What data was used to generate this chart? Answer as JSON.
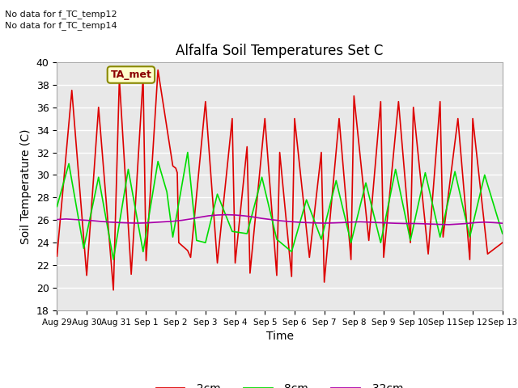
{
  "title": "Alfalfa Soil Temperatures Set C",
  "xlabel": "Time",
  "ylabel": "Soil Temperature (C)",
  "ylim": [
    18,
    40
  ],
  "bg_color": "#e8e8e8",
  "grid_color": "#ffffff",
  "annotations": [
    "No data for f_TC_temp12",
    "No data for f_TC_temp14"
  ],
  "legend_box_label": "TA_met",
  "legend_box_color": "#ffffcc",
  "legend_box_border": "#888800",
  "xtick_labels": [
    "Aug 29",
    "Aug 30",
    "Aug 31",
    "Sep 1",
    "Sep 2",
    "Sep 3",
    "Sep 4",
    "Sep 5",
    "Sep 6",
    "Sep 7",
    "Sep 8",
    "Sep 9",
    "Sep 10",
    "Sep 11",
    "Sep 12",
    "Sep 13"
  ],
  "line_2cm_color": "#dd0000",
  "line_8cm_color": "#00dd00",
  "line_32cm_color": "#aa00aa",
  "line_width": 1.2,
  "series_2cm_x": [
    0.0,
    0.5,
    1.0,
    1.4,
    1.9,
    2.1,
    2.5,
    2.9,
    3.0,
    3.4,
    3.9,
    4.0,
    4.05,
    4.1,
    4.4,
    4.5,
    5.0,
    5.4,
    5.9,
    6.0,
    6.4,
    6.5,
    7.0,
    7.4,
    7.5,
    7.9,
    8.0,
    8.5,
    8.9,
    9.0,
    9.5,
    9.9,
    10.0,
    10.5,
    10.9,
    11.0,
    11.5,
    11.9,
    12.0,
    12.5,
    12.9,
    13.0,
    13.5,
    13.9,
    14.0,
    14.5,
    15.0
  ],
  "series_2cm_y": [
    22.8,
    37.5,
    21.1,
    36.0,
    19.8,
    38.5,
    21.2,
    38.7,
    22.4,
    39.3,
    30.8,
    30.6,
    30.2,
    24.0,
    23.3,
    22.7,
    36.5,
    22.2,
    35.0,
    22.2,
    32.5,
    21.3,
    35.0,
    21.1,
    32.0,
    21.0,
    35.0,
    22.7,
    32.0,
    20.5,
    35.0,
    22.5,
    37.0,
    24.2,
    36.5,
    22.7,
    36.5,
    24.0,
    36.0,
    23.0,
    36.5,
    24.5,
    35.0,
    22.5,
    35.0,
    23.0,
    24.0
  ],
  "series_8cm_x": [
    0.0,
    0.4,
    0.9,
    1.4,
    1.9,
    2.4,
    2.9,
    3.4,
    3.7,
    3.9,
    4.4,
    4.7,
    5.0,
    5.4,
    5.9,
    6.4,
    6.9,
    7.4,
    7.9,
    8.4,
    8.9,
    9.4,
    9.9,
    10.4,
    10.9,
    11.4,
    11.9,
    12.4,
    12.9,
    13.4,
    13.9,
    14.4,
    15.0
  ],
  "series_8cm_y": [
    27.2,
    31.0,
    23.5,
    29.8,
    22.5,
    30.5,
    23.2,
    31.2,
    28.5,
    24.5,
    32.0,
    24.2,
    24.0,
    28.3,
    25.0,
    24.8,
    29.8,
    24.3,
    23.2,
    27.8,
    24.3,
    29.5,
    24.0,
    29.3,
    24.0,
    30.5,
    24.2,
    30.2,
    24.5,
    30.3,
    24.5,
    30.0,
    24.8
  ],
  "series_32cm_x": [
    0.0,
    0.3,
    0.6,
    0.9,
    1.2,
    1.5,
    1.8,
    2.1,
    2.4,
    2.7,
    3.0,
    3.3,
    3.6,
    3.9,
    4.2,
    4.5,
    4.8,
    5.1,
    5.4,
    5.7,
    6.0,
    6.3,
    6.6,
    6.9,
    7.2,
    7.5,
    7.8,
    8.1,
    8.4,
    8.7,
    9.0,
    9.3,
    9.6,
    9.9,
    10.2,
    10.5,
    10.8,
    11.1,
    11.4,
    11.7,
    12.0,
    12.3,
    12.6,
    12.9,
    13.2,
    13.5,
    13.8,
    14.1,
    14.4,
    14.7,
    15.0
  ],
  "series_32cm_y": [
    26.05,
    26.1,
    26.05,
    26.0,
    25.95,
    25.88,
    25.82,
    25.78,
    25.75,
    25.73,
    25.75,
    25.8,
    25.85,
    25.9,
    25.98,
    26.1,
    26.25,
    26.38,
    26.45,
    26.48,
    26.45,
    26.38,
    26.28,
    26.15,
    26.05,
    25.95,
    25.88,
    25.82,
    25.78,
    25.75,
    25.73,
    25.75,
    25.78,
    25.82,
    25.85,
    25.82,
    25.78,
    25.75,
    25.72,
    25.7,
    25.7,
    25.68,
    25.65,
    25.62,
    25.6,
    25.65,
    25.7,
    25.78,
    25.82,
    25.78,
    25.72
  ]
}
